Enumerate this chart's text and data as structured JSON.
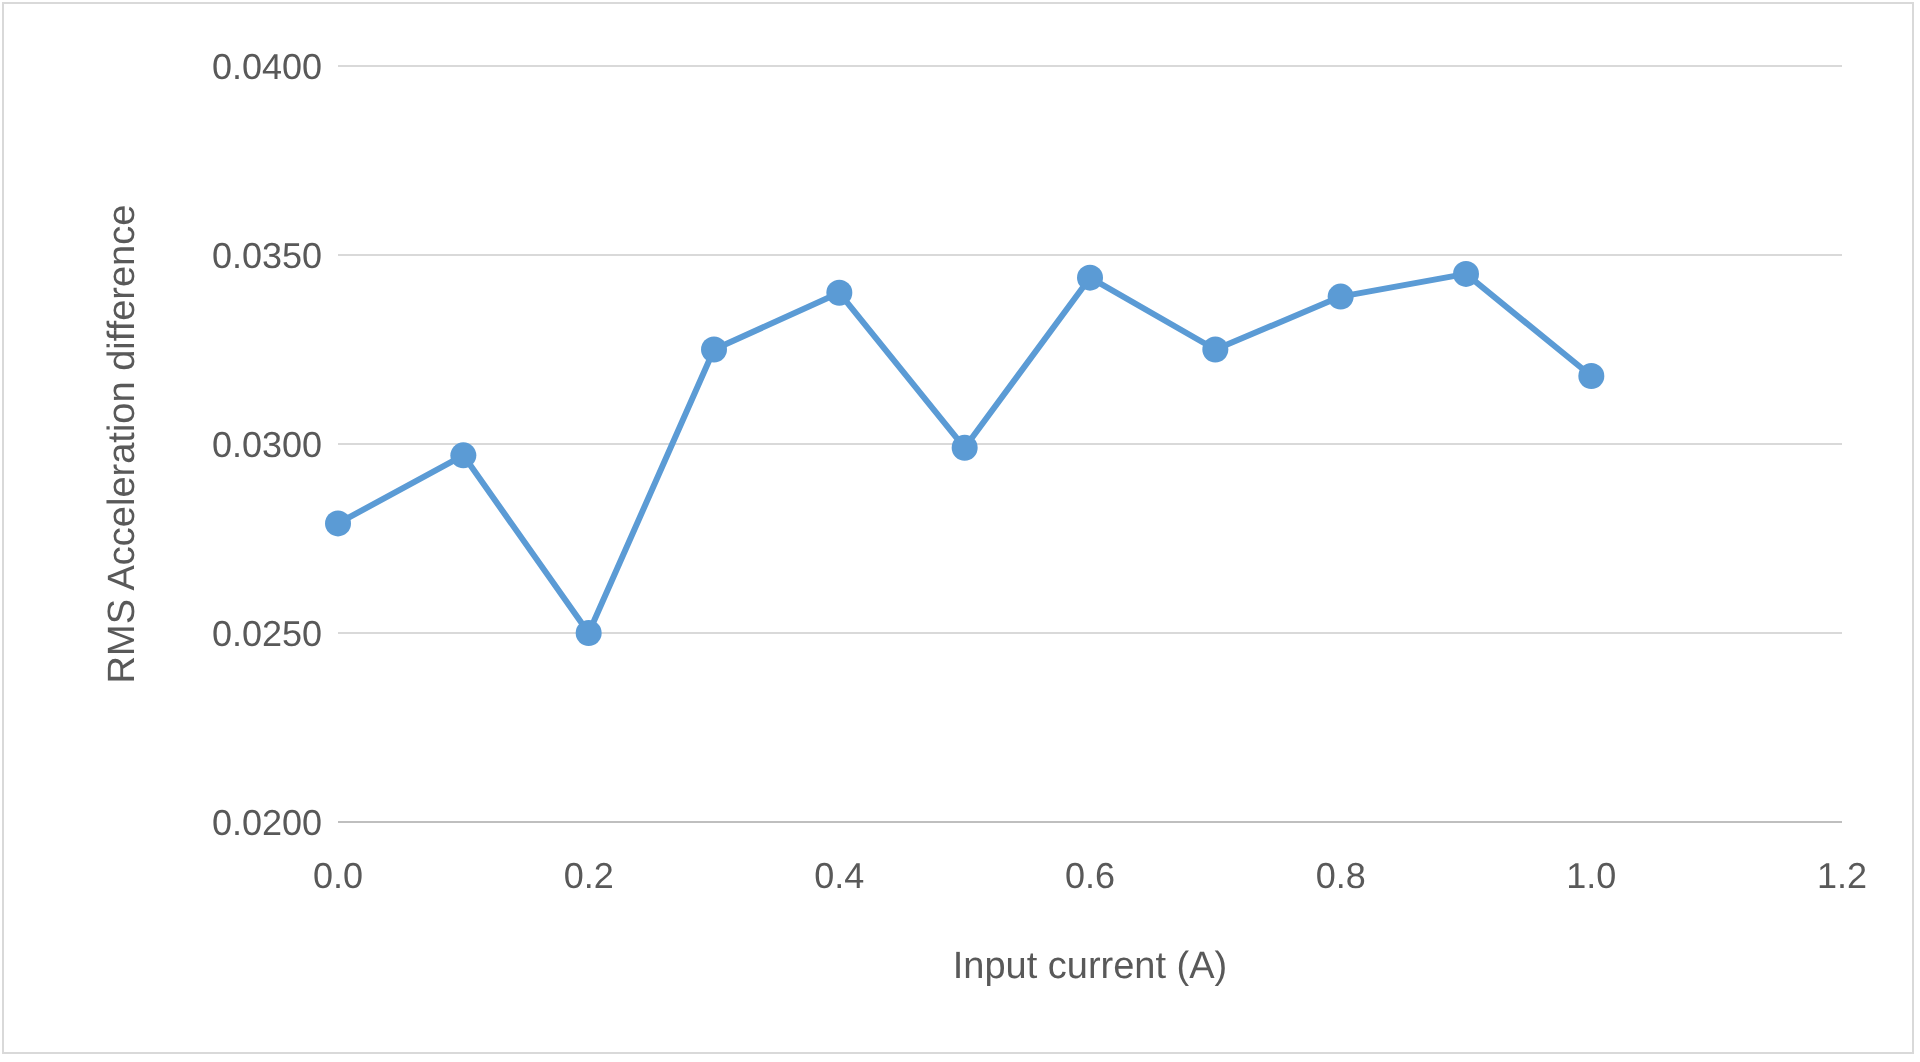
{
  "chart_data": {
    "type": "line",
    "xlabel": "Input current (A)",
    "ylabel": "RMS Acceleration difference",
    "x": [
      0,
      0.1,
      0.2,
      0.3,
      0.4,
      0.5,
      0.6,
      0.7,
      0.8,
      0.9,
      1.0
    ],
    "series": [
      {
        "color": "#5b9bd5",
        "values": [
          0.0279,
          0.0297,
          0.025,
          0.0325,
          0.034,
          0.0299,
          0.0344,
          0.0325,
          0.0339,
          0.0345,
          0.0318
        ]
      }
    ],
    "xlim": [
      0,
      1.2
    ],
    "ylim": [
      0.02,
      0.04
    ],
    "xticks": [
      {
        "value": 0,
        "label": "0.0"
      },
      {
        "value": 0.2,
        "label": "0.2"
      },
      {
        "value": 0.4,
        "label": "0.4"
      },
      {
        "value": 0.6,
        "label": "0.6"
      },
      {
        "value": 0.8,
        "label": "0.8"
      },
      {
        "value": 1.0,
        "label": "1.0"
      },
      {
        "value": 1.2,
        "label": "1.2"
      }
    ],
    "yticks": [
      {
        "value": 0.02,
        "label": "0.0200"
      },
      {
        "value": 0.025,
        "label": "0.0250"
      },
      {
        "value": 0.03,
        "label": "0.0300"
      },
      {
        "value": 0.035,
        "label": "0.0350"
      },
      {
        "value": 0.04,
        "label": "0.0400"
      }
    ],
    "grid": "y",
    "marker": "circle",
    "line_style": "solid"
  }
}
